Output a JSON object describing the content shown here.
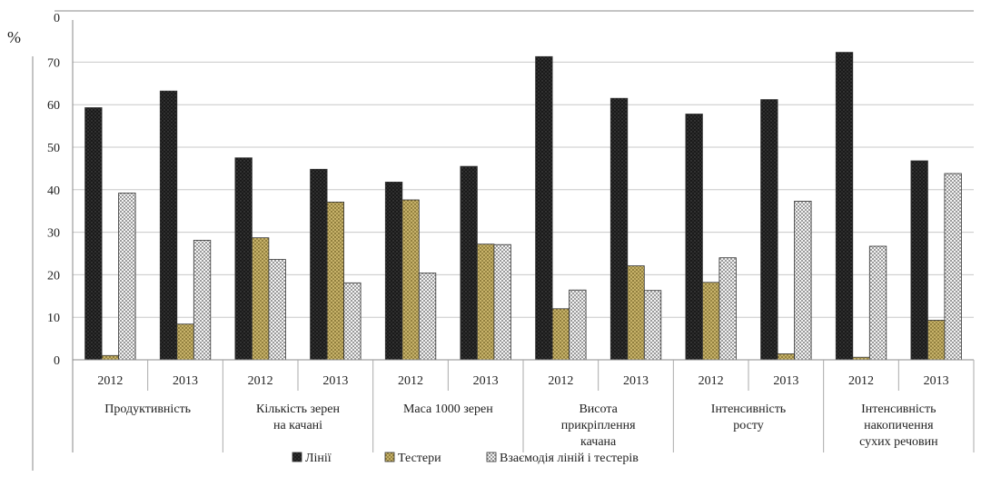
{
  "chart_data": {
    "type": "bar",
    "ylabel": "%",
    "ylim": [
      0,
      80
    ],
    "yticks": [
      "0",
      "10",
      "20",
      "30",
      "40",
      "50",
      "60",
      "70"
    ],
    "top_tick": "0",
    "grid": true,
    "legend_position": "bottom",
    "groups": [
      {
        "label_lines": [
          "Продуктивність"
        ],
        "years": [
          "2012",
          "2013"
        ]
      },
      {
        "label_lines": [
          "Кількість зерен",
          "на качані"
        ],
        "years": [
          "2012",
          "2013"
        ]
      },
      {
        "label_lines": [
          "Маса 1000 зерен"
        ],
        "years": [
          "2012",
          "2013"
        ]
      },
      {
        "label_lines": [
          "Висота",
          "прикріплення",
          "качана"
        ],
        "years": [
          "2012",
          "2013"
        ]
      },
      {
        "label_lines": [
          "Інтенсивність",
          "росту"
        ],
        "years": [
          "2012",
          "2013"
        ]
      },
      {
        "label_lines": [
          "Інтенсивність",
          "накопичення",
          "сухих речовин"
        ],
        "years": [
          "2012",
          "2013"
        ]
      }
    ],
    "series": [
      {
        "name": "Лінії",
        "color": "#1a1a1a",
        "values": [
          59.3,
          63.2,
          47.5,
          44.8,
          41.8,
          45.5,
          71.3,
          61.5,
          57.8,
          61.2,
          72.3,
          46.8
        ]
      },
      {
        "name": "Тестери",
        "color": "#b8a35c",
        "values": [
          1.0,
          8.4,
          28.7,
          37.1,
          37.6,
          27.2,
          12.0,
          22.1,
          18.2,
          1.4,
          0.6,
          9.3
        ]
      },
      {
        "name": "Взаємодія ліній і тестерів",
        "color": "#dcdcdc",
        "values": [
          39.2,
          28.1,
          23.6,
          18.1,
          20.4,
          27.1,
          16.4,
          16.3,
          24.0,
          37.3,
          26.7,
          43.8
        ]
      }
    ]
  }
}
